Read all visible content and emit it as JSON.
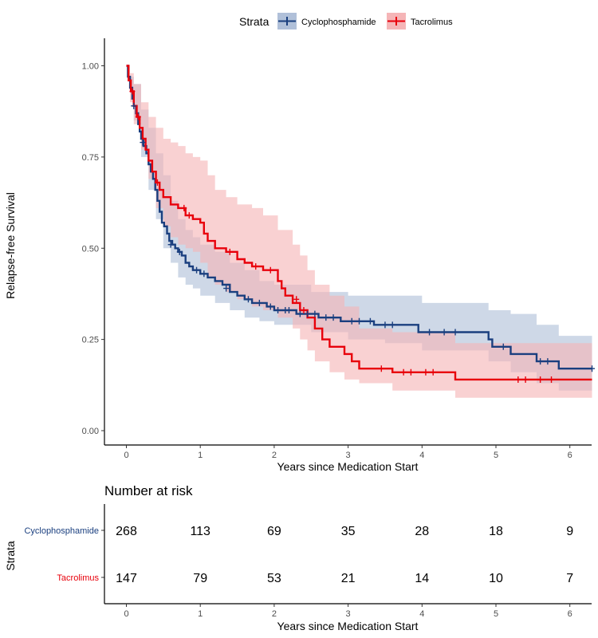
{
  "legend": {
    "title": "Strata",
    "items": [
      {
        "label": "Cyclophosphamide",
        "color": "#1a3f7f",
        "fill": "#b0c0d9"
      },
      {
        "label": "Tacrolimus",
        "color": "#e8000b",
        "fill": "#f5b5b7"
      }
    ]
  },
  "chart_data": [
    {
      "type": "line",
      "subtype": "kaplan-meier step curves with confidence bands and censor marks",
      "xlabel": "Years since Medication Start",
      "ylabel": "Relapse-free Survival",
      "xlim": [
        -0.3,
        6.3
      ],
      "ylim": [
        -0.05,
        1.05
      ],
      "x_ticks": [
        0,
        1,
        2,
        3,
        4,
        5,
        6
      ],
      "y_ticks": [
        "0.00",
        "0.25",
        "0.50",
        "0.75",
        "1.00"
      ],
      "grid": false,
      "legend_position": "top",
      "series": [
        {
          "name": "Cyclophosphamide",
          "color": "#1a3f7f",
          "band_color": "#b0c0d9",
          "steps": [
            [
              0,
              1.0
            ],
            [
              0.02,
              0.97
            ],
            [
              0.05,
              0.94
            ],
            [
              0.08,
              0.91
            ],
            [
              0.1,
              0.89
            ],
            [
              0.13,
              0.87
            ],
            [
              0.16,
              0.84
            ],
            [
              0.18,
              0.82
            ],
            [
              0.2,
              0.8
            ],
            [
              0.23,
              0.78
            ],
            [
              0.27,
              0.76
            ],
            [
              0.3,
              0.73
            ],
            [
              0.33,
              0.71
            ],
            [
              0.36,
              0.69
            ],
            [
              0.39,
              0.66
            ],
            [
              0.42,
              0.63
            ],
            [
              0.45,
              0.6
            ],
            [
              0.48,
              0.57
            ],
            [
              0.51,
              0.56
            ],
            [
              0.55,
              0.54
            ],
            [
              0.58,
              0.52
            ],
            [
              0.62,
              0.51
            ],
            [
              0.66,
              0.5
            ],
            [
              0.7,
              0.49
            ],
            [
              0.75,
              0.48
            ],
            [
              0.8,
              0.46
            ],
            [
              0.85,
              0.45
            ],
            [
              0.9,
              0.44
            ],
            [
              1.0,
              0.43
            ],
            [
              1.1,
              0.42
            ],
            [
              1.2,
              0.41
            ],
            [
              1.3,
              0.4
            ],
            [
              1.4,
              0.38
            ],
            [
              1.5,
              0.37
            ],
            [
              1.6,
              0.36
            ],
            [
              1.7,
              0.35
            ],
            [
              1.9,
              0.34
            ],
            [
              2.0,
              0.33
            ],
            [
              2.3,
              0.32
            ],
            [
              2.6,
              0.31
            ],
            [
              2.9,
              0.3
            ],
            [
              3.35,
              0.29
            ],
            [
              3.95,
              0.27
            ],
            [
              4.9,
              0.25
            ],
            [
              4.95,
              0.23
            ],
            [
              5.2,
              0.21
            ],
            [
              5.55,
              0.19
            ],
            [
              5.85,
              0.17
            ]
          ],
          "upper": [
            [
              0,
              1.0
            ],
            [
              0.05,
              0.97
            ],
            [
              0.1,
              0.95
            ],
            [
              0.2,
              0.88
            ],
            [
              0.3,
              0.83
            ],
            [
              0.4,
              0.76
            ],
            [
              0.5,
              0.7
            ],
            [
              0.6,
              0.63
            ],
            [
              0.7,
              0.58
            ],
            [
              0.8,
              0.55
            ],
            [
              0.9,
              0.53
            ],
            [
              1.0,
              0.51
            ],
            [
              1.2,
              0.49
            ],
            [
              1.4,
              0.46
            ],
            [
              1.6,
              0.44
            ],
            [
              1.8,
              0.41
            ],
            [
              2.0,
              0.4
            ],
            [
              2.5,
              0.38
            ],
            [
              3.0,
              0.37
            ],
            [
              3.5,
              0.37
            ],
            [
              4.0,
              0.35
            ],
            [
              4.9,
              0.33
            ],
            [
              5.2,
              0.32
            ],
            [
              5.55,
              0.29
            ],
            [
              5.85,
              0.26
            ],
            [
              6.3,
              0.26
            ]
          ],
          "lower": [
            [
              0,
              1.0
            ],
            [
              0.05,
              0.93
            ],
            [
              0.1,
              0.85
            ],
            [
              0.2,
              0.75
            ],
            [
              0.3,
              0.66
            ],
            [
              0.4,
              0.58
            ],
            [
              0.5,
              0.5
            ],
            [
              0.6,
              0.46
            ],
            [
              0.7,
              0.42
            ],
            [
              0.8,
              0.4
            ],
            [
              0.9,
              0.39
            ],
            [
              1.0,
              0.37
            ],
            [
              1.2,
              0.35
            ],
            [
              1.4,
              0.33
            ],
            [
              1.6,
              0.31
            ],
            [
              1.8,
              0.3
            ],
            [
              2.0,
              0.29
            ],
            [
              2.5,
              0.27
            ],
            [
              3.0,
              0.25
            ],
            [
              3.5,
              0.24
            ],
            [
              4.0,
              0.22
            ],
            [
              4.9,
              0.19
            ],
            [
              5.2,
              0.16
            ],
            [
              5.55,
              0.13
            ],
            [
              5.85,
              0.11
            ],
            [
              6.3,
              0.11
            ]
          ],
          "censored": [
            [
              0.1,
              0.89
            ],
            [
              0.22,
              0.79
            ],
            [
              0.6,
              0.51
            ],
            [
              0.72,
              0.49
            ],
            [
              0.95,
              0.44
            ],
            [
              1.05,
              0.43
            ],
            [
              1.35,
              0.39
            ],
            [
              1.65,
              0.36
            ],
            [
              1.8,
              0.35
            ],
            [
              1.95,
              0.34
            ],
            [
              2.05,
              0.33
            ],
            [
              2.15,
              0.33
            ],
            [
              2.2,
              0.33
            ],
            [
              2.35,
              0.32
            ],
            [
              2.45,
              0.32
            ],
            [
              2.55,
              0.32
            ],
            [
              2.7,
              0.31
            ],
            [
              2.8,
              0.31
            ],
            [
              3.05,
              0.3
            ],
            [
              3.15,
              0.3
            ],
            [
              3.3,
              0.3
            ],
            [
              3.5,
              0.29
            ],
            [
              3.6,
              0.29
            ],
            [
              4.1,
              0.27
            ],
            [
              4.3,
              0.27
            ],
            [
              4.45,
              0.27
            ],
            [
              5.1,
              0.23
            ],
            [
              5.6,
              0.19
            ],
            [
              5.7,
              0.19
            ],
            [
              6.3,
              0.17
            ]
          ]
        },
        {
          "name": "Tacrolimus",
          "color": "#e8000b",
          "band_color": "#f5b5b7",
          "steps": [
            [
              0,
              1.0
            ],
            [
              0.03,
              0.96
            ],
            [
              0.06,
              0.93
            ],
            [
              0.1,
              0.89
            ],
            [
              0.14,
              0.86
            ],
            [
              0.18,
              0.83
            ],
            [
              0.22,
              0.8
            ],
            [
              0.26,
              0.77
            ],
            [
              0.3,
              0.74
            ],
            [
              0.35,
              0.71
            ],
            [
              0.4,
              0.68
            ],
            [
              0.45,
              0.66
            ],
            [
              0.5,
              0.64
            ],
            [
              0.6,
              0.62
            ],
            [
              0.7,
              0.61
            ],
            [
              0.8,
              0.59
            ],
            [
              0.9,
              0.58
            ],
            [
              1.0,
              0.57
            ],
            [
              1.05,
              0.54
            ],
            [
              1.1,
              0.52
            ],
            [
              1.2,
              0.5
            ],
            [
              1.35,
              0.49
            ],
            [
              1.5,
              0.47
            ],
            [
              1.6,
              0.46
            ],
            [
              1.7,
              0.45
            ],
            [
              1.85,
              0.44
            ],
            [
              2.05,
              0.41
            ],
            [
              2.1,
              0.39
            ],
            [
              2.15,
              0.37
            ],
            [
              2.25,
              0.35
            ],
            [
              2.35,
              0.33
            ],
            [
              2.45,
              0.31
            ],
            [
              2.55,
              0.28
            ],
            [
              2.65,
              0.25
            ],
            [
              2.75,
              0.23
            ],
            [
              2.95,
              0.21
            ],
            [
              3.05,
              0.19
            ],
            [
              3.15,
              0.17
            ],
            [
              3.6,
              0.16
            ],
            [
              4.45,
              0.14
            ]
          ],
          "upper": [
            [
              0,
              1.0
            ],
            [
              0.05,
              0.98
            ],
            [
              0.1,
              0.95
            ],
            [
              0.2,
              0.9
            ],
            [
              0.3,
              0.86
            ],
            [
              0.4,
              0.83
            ],
            [
              0.5,
              0.8
            ],
            [
              0.6,
              0.79
            ],
            [
              0.7,
              0.78
            ],
            [
              0.8,
              0.76
            ],
            [
              0.9,
              0.75
            ],
            [
              1.0,
              0.74
            ],
            [
              1.1,
              0.7
            ],
            [
              1.2,
              0.66
            ],
            [
              1.35,
              0.64
            ],
            [
              1.5,
              0.62
            ],
            [
              1.7,
              0.61
            ],
            [
              1.85,
              0.59
            ],
            [
              2.05,
              0.55
            ],
            [
              2.25,
              0.51
            ],
            [
              2.35,
              0.48
            ],
            [
              2.45,
              0.44
            ],
            [
              2.55,
              0.4
            ],
            [
              2.75,
              0.37
            ],
            [
              2.95,
              0.34
            ],
            [
              3.15,
              0.28
            ],
            [
              3.6,
              0.27
            ],
            [
              4.45,
              0.24
            ],
            [
              6.3,
              0.24
            ]
          ],
          "lower": [
            [
              0,
              1.0
            ],
            [
              0.05,
              0.9
            ],
            [
              0.1,
              0.84
            ],
            [
              0.2,
              0.77
            ],
            [
              0.3,
              0.69
            ],
            [
              0.4,
              0.61
            ],
            [
              0.5,
              0.56
            ],
            [
              0.6,
              0.53
            ],
            [
              0.7,
              0.51
            ],
            [
              0.8,
              0.5
            ],
            [
              0.9,
              0.49
            ],
            [
              1.0,
              0.46
            ],
            [
              1.1,
              0.42
            ],
            [
              1.2,
              0.4
            ],
            [
              1.35,
              0.38
            ],
            [
              1.5,
              0.36
            ],
            [
              1.7,
              0.34
            ],
            [
              1.85,
              0.33
            ],
            [
              2.05,
              0.31
            ],
            [
              2.25,
              0.28
            ],
            [
              2.35,
              0.25
            ],
            [
              2.45,
              0.22
            ],
            [
              2.55,
              0.19
            ],
            [
              2.75,
              0.16
            ],
            [
              2.95,
              0.14
            ],
            [
              3.15,
              0.13
            ],
            [
              3.6,
              0.11
            ],
            [
              4.45,
              0.09
            ],
            [
              6.3,
              0.09
            ]
          ],
          "censored": [
            [
              0.08,
              0.93
            ],
            [
              0.16,
              0.86
            ],
            [
              0.42,
              0.68
            ],
            [
              0.78,
              0.61
            ],
            [
              0.85,
              0.59
            ],
            [
              1.4,
              0.49
            ],
            [
              1.75,
              0.45
            ],
            [
              1.95,
              0.44
            ],
            [
              2.3,
              0.36
            ],
            [
              2.4,
              0.33
            ],
            [
              3.45,
              0.17
            ],
            [
              3.75,
              0.16
            ],
            [
              3.85,
              0.16
            ],
            [
              4.05,
              0.16
            ],
            [
              4.15,
              0.16
            ],
            [
              5.3,
              0.14
            ],
            [
              5.4,
              0.14
            ],
            [
              5.6,
              0.14
            ],
            [
              5.75,
              0.14
            ]
          ]
        }
      ]
    },
    {
      "type": "table",
      "title": "Number at risk",
      "xlabel": "Years since Medication Start",
      "ylabel": "Strata",
      "x_ticks": [
        0,
        1,
        2,
        3,
        4,
        5,
        6
      ],
      "rows": [
        {
          "label": "Cyclophosphamide",
          "color": "#1a3f7f",
          "values": [
            268,
            113,
            69,
            35,
            28,
            18,
            9
          ]
        },
        {
          "label": "Tacrolimus",
          "color": "#e8000b",
          "values": [
            147,
            79,
            53,
            21,
            14,
            10,
            7
          ]
        }
      ]
    }
  ]
}
